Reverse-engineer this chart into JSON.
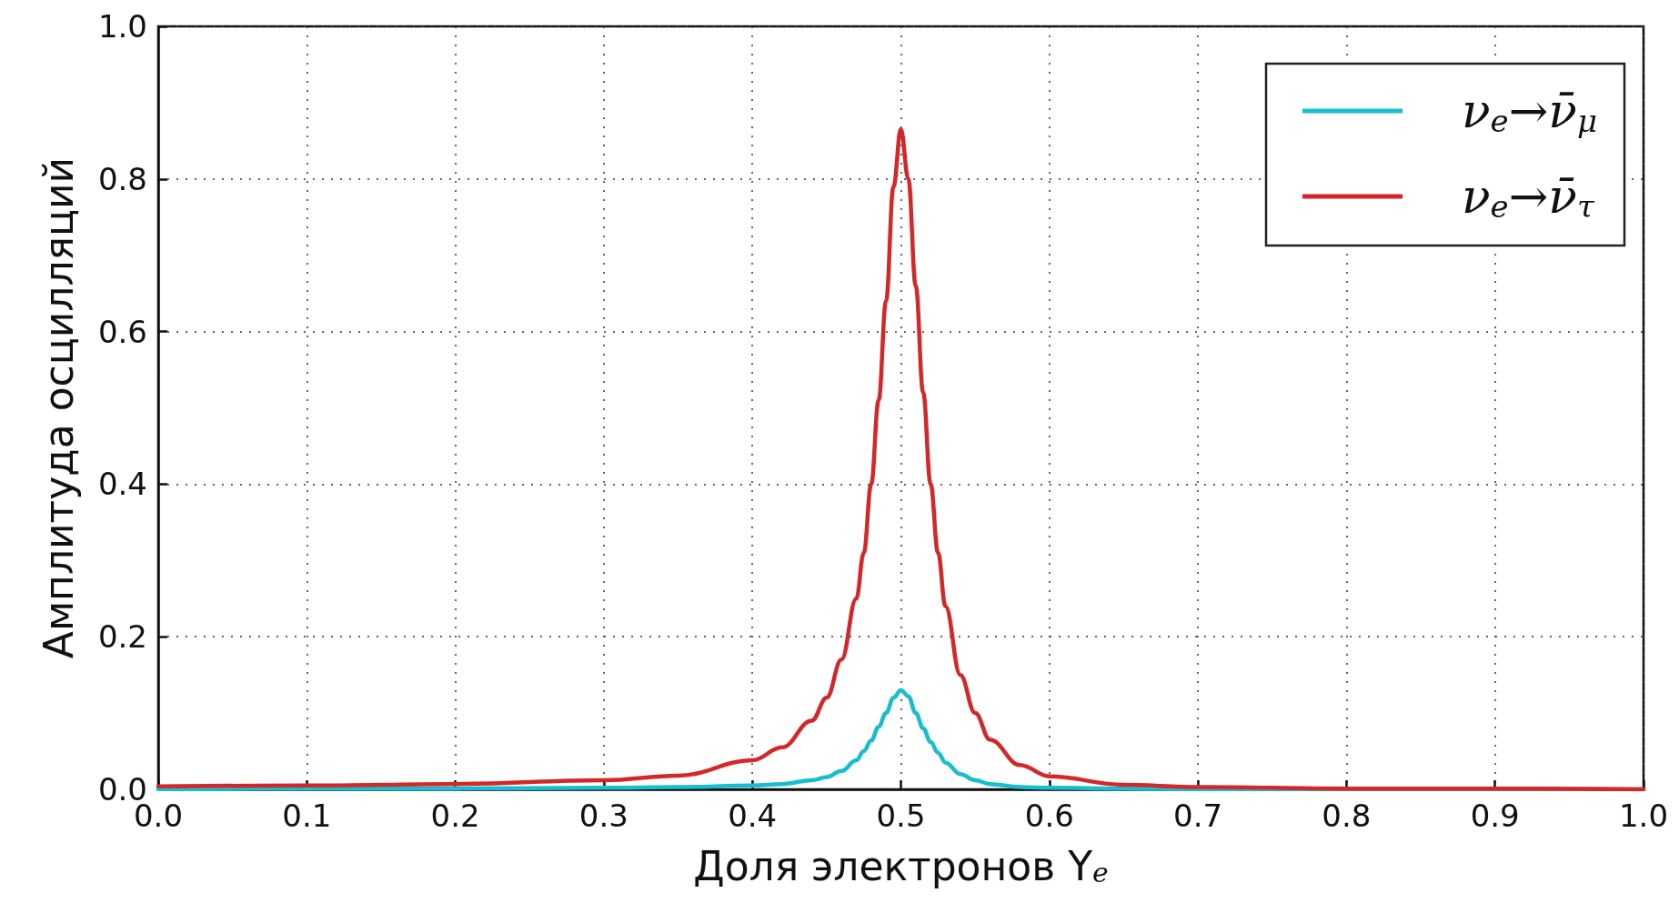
{
  "chart_data": {
    "type": "line",
    "xlabel": "Доля электронов Y$_{e}$",
    "ylabel": "Амплитуда осцилляций",
    "x": [
      0,
      0.1,
      0.2,
      0.3,
      0.35,
      0.4,
      0.42,
      0.44,
      0.45,
      0.46,
      0.47,
      0.475,
      0.48,
      0.485,
      0.49,
      0.495,
      0.5,
      0.505,
      0.51,
      0.515,
      0.52,
      0.525,
      0.53,
      0.54,
      0.55,
      0.56,
      0.58,
      0.6,
      0.65,
      0.7,
      0.8,
      0.9,
      1.0
    ],
    "series": [
      {
        "name": "ν$_{e}$→ν̄$_{μ}$",
        "color": "#17becf",
        "values": [
          0.0,
          0.001,
          0.001,
          0.002,
          0.003,
          0.005,
          0.007,
          0.012,
          0.016,
          0.024,
          0.038,
          0.05,
          0.064,
          0.082,
          0.1,
          0.12,
          0.13,
          0.122,
          0.1,
          0.08,
          0.062,
          0.048,
          0.035,
          0.02,
          0.012,
          0.007,
          0.003,
          0.002,
          0.001,
          0.0,
          0.0,
          0.0,
          0.0
        ]
      },
      {
        "name": "ν$_{e}$→ν̄$_{τ}$",
        "color": "#d62728",
        "values": [
          0.004,
          0.005,
          0.007,
          0.012,
          0.018,
          0.038,
          0.055,
          0.09,
          0.12,
          0.17,
          0.25,
          0.31,
          0.4,
          0.51,
          0.64,
          0.79,
          0.865,
          0.8,
          0.66,
          0.52,
          0.4,
          0.31,
          0.24,
          0.15,
          0.1,
          0.065,
          0.032,
          0.017,
          0.006,
          0.003,
          0.001,
          0.001,
          0.0
        ]
      }
    ],
    "xlim": [
      0,
      1
    ],
    "xticks": [
      {
        "value": 0,
        "label": "0.0"
      },
      0.1,
      0.2,
      0.3,
      0.4,
      0.5,
      0.6,
      0.7,
      0.8,
      0.9,
      {
        "value": 1,
        "label": "1.0"
      }
    ],
    "ylim": [
      0,
      1
    ],
    "yticks": [
      {
        "value": 0,
        "label": "0.0"
      },
      0.2,
      0.4,
      0.6,
      0.8,
      {
        "value": 1,
        "label": "1.0"
      }
    ],
    "grid": true,
    "legend": "top right",
    "marker": "none",
    "line_style": "solid"
  }
}
